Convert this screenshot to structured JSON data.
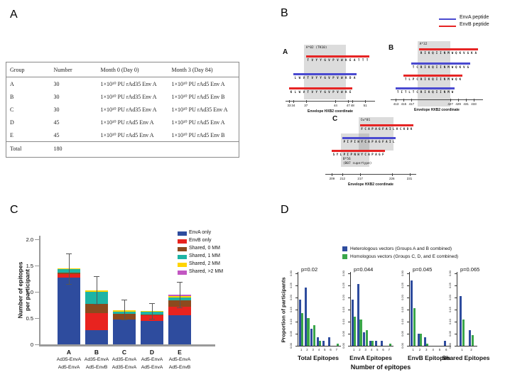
{
  "panels": {
    "A": "A",
    "B": "B",
    "C": "C",
    "D": "D"
  },
  "table": {
    "headers": [
      "Group",
      "Number",
      "Month 0 (Day 0)",
      "Month 3 (Day 84)"
    ],
    "rows": [
      [
        "A",
        "30",
        "1×10¹⁰ PU rAd35 Env A",
        "1×10¹⁰ PU rAd5 Env A"
      ],
      [
        "B",
        "30",
        "1×10¹⁰ PU rAd35 Env A",
        "1×10¹⁰ PU rAd5 Env B"
      ],
      [
        "C",
        "30",
        "1×10¹⁰ PU rAd35 Env A",
        "1×10¹⁰ PU rAd35 Env A"
      ],
      [
        "D",
        "45",
        "1×10¹⁰ PU rAd5 Env A",
        "1×10¹⁰ PU rAd5 Env A"
      ],
      [
        "E",
        "45",
        "1×10¹⁰ PU rAd5 Env A",
        "1×10¹⁰ PU rAd5 Env B"
      ]
    ],
    "total_row": [
      "Total",
      "180",
      "",
      ""
    ]
  },
  "peptide_maps": {
    "env_colors": {
      "EnvA": "#4a4ad0",
      "EnvB": "#e62424"
    },
    "legend": [
      {
        "label": "EnvA peptide",
        "env": "EnvA"
      },
      {
        "label": "EnvB peptide",
        "env": "EnvB"
      }
    ],
    "axis_caption": "Envelope HXB2 coordinate",
    "subpanels": [
      {
        "label": "A",
        "xmin": 32.5,
        "xmax": 53,
        "ticks": [
          33,
          34,
          37,
          44,
          47,
          48,
          51
        ],
        "boxes": [
          {
            "label": "A*02 (TK10)",
            "start": 36.5,
            "end": 46.5,
            "label_pos": "top"
          }
        ],
        "peptides": [
          {
            "env": "EnvB",
            "start": 37,
            "seq": "TVYYGVPVWKEATTT"
          },
          {
            "env": "EnvA",
            "start": 34,
            "seq": "LWVTVYYGVPVWKDA"
          },
          {
            "env": "EnvB",
            "start": 33,
            "seq": "KLWVTVYYGVPVWKE"
          }
        ]
      },
      {
        "label": "B",
        "xmin": 412,
        "xmax": 435,
        "ticks": [
          413,
          415,
          417,
          427,
          429,
          431,
          433
        ],
        "boxes": [
          {
            "label": "A*32",
            "start": 418.5,
            "end": 427,
            "label_pos": "top"
          }
        ],
        "peptides": [
          {
            "env": "EnvB",
            "start": 419,
            "seq": "RIKQIINMWQKVGKA"
          },
          {
            "env": "EnvA",
            "start": 417,
            "seq": "TCRIKQIINMWQKVG"
          },
          {
            "env": "EnvB",
            "start": 415,
            "seq": "TLPCRIKQIINMWQK"
          },
          {
            "env": "EnvA",
            "start": 413,
            "seq": "TITLTCRIKQIINMW"
          }
        ]
      },
      {
        "label": "C",
        "xmin": 207.5,
        "xmax": 232.5,
        "ticks": [
          209,
          212,
          217,
          226,
          231
        ],
        "boxes": [
          {
            "label": "Cw*01",
            "start": 216.5,
            "end": 226.5,
            "label_pos": "top"
          },
          {
            "label": "B*56\n(B07 supertype)",
            "start": 211.5,
            "end": 219.5,
            "label_pos": "bottom"
          }
        ],
        "peptides": [
          {
            "env": "EnvB",
            "start": 217,
            "seq": "FCAPAGFAILKCKDK"
          },
          {
            "env": "EnvA",
            "start": 212,
            "seq": "PIPIHYCAPAGFAIL"
          },
          {
            "env": "EnvB",
            "start": 209,
            "seq": "SYLPIPNHYCAPAGF"
          }
        ]
      }
    ]
  },
  "chart_data": [
    {
      "panel": "C",
      "type": "bar",
      "stacked": true,
      "ylabel": "Number of epitopes per participant",
      "ylim": [
        0,
        2.0
      ],
      "yticks": [
        "0",
        "0.5",
        "1.0",
        "1.5",
        "2.0"
      ],
      "grid": false,
      "legend_position": "top-right",
      "categories": [
        "A",
        "B",
        "C",
        "D",
        "E"
      ],
      "category_sublabels": [
        [
          "Ad35-EnvA",
          "Ad5-EnvA"
        ],
        [
          "Ad35-EnvA",
          "Ad5-EnvB"
        ],
        [
          "Ad35-EnvA",
          "Ad35-EnvA"
        ],
        [
          "Ad5-EnvA",
          "Ad5-EnvA"
        ],
        [
          "Ad5-EnvA",
          "Ad5-EnvB"
        ]
      ],
      "series": [
        {
          "name": "EnvA only",
          "color": "#2e4c9e",
          "values": [
            1.27,
            0.27,
            0.47,
            0.44,
            0.56
          ]
        },
        {
          "name": "EnvB only",
          "color": "#e8231f",
          "values": [
            0.07,
            0.33,
            0.0,
            0.11,
            0.16
          ]
        },
        {
          "name": "Shared, 0 MM",
          "color": "#8c4a1e",
          "values": [
            0.03,
            0.17,
            0.11,
            0.02,
            0.12
          ]
        },
        {
          "name": "Shared, 1 MM",
          "color": "#1db4a5",
          "values": [
            0.06,
            0.23,
            0.04,
            0.05,
            0.05
          ]
        },
        {
          "name": "Shared, 2 MM",
          "color": "#ffd400",
          "values": [
            0.01,
            0.03,
            0.03,
            0.01,
            0.03
          ]
        },
        {
          "name": "Shared, >2 MM",
          "color": "#c257c2",
          "values": [
            0.0,
            0.0,
            0.0,
            0.0,
            0.03
          ]
        }
      ],
      "error_bars": [
        {
          "lo": 1.15,
          "hi": 1.73
        },
        {
          "lo": 0.77,
          "hi": 1.3
        },
        {
          "lo": 0.47,
          "hi": 0.85
        },
        {
          "lo": 0.48,
          "hi": 0.78
        },
        {
          "lo": 0.7,
          "hi": 1.19
        }
      ]
    },
    {
      "panel": "D",
      "type": "bar",
      "grouped": true,
      "ylabel": "Proportion of participants",
      "xlabel": "Number of epitopes",
      "ylim": [
        0,
        0.3
      ],
      "yticks": [
        "0.00",
        "0.05",
        "0.10",
        "0.15",
        "0.20",
        "0.25",
        "0.30"
      ],
      "legend": [
        {
          "name": "Heterologous vectors (Groups A and B combined)",
          "color": "#2e4c9e"
        },
        {
          "name": "Homologous vectors (Groups C, D, and E combined)",
          "color": "#3aa64a"
        }
      ],
      "subplots": [
        {
          "title": "Total Epitopes",
          "p_value": "p=0.02",
          "categories": [
            "1",
            "2",
            "3",
            "4",
            "5",
            "6",
            "7"
          ],
          "series": [
            {
              "name": "Heterologous",
              "values": [
                0.19,
                0.24,
                0.07,
                0.035,
                0.02,
                0.035,
                0
              ]
            },
            {
              "name": "Homologous",
              "values": [
                0.135,
                0.115,
                0.085,
                0.02,
                0,
                0,
                0.01
              ]
            }
          ]
        },
        {
          "title": "EnvA Epitopes",
          "p_value": "p=0.044",
          "categories": [
            "1",
            "2",
            "3",
            "4",
            "5",
            "6",
            "7"
          ],
          "series": [
            {
              "name": "Heterologous",
              "values": [
                0.19,
                0.255,
                0.055,
                0.02,
                0.02,
                0.02,
                0
              ]
            },
            {
              "name": "Homologous",
              "values": [
                0.12,
                0.11,
                0.065,
                0.02,
                0,
                0,
                0.008
              ]
            }
          ]
        },
        {
          "title": "EnvB Epitopes",
          "p_value": "p=0.045",
          "categories": [
            "1",
            "2",
            "3",
            "4",
            "5",
            "6"
          ],
          "series": [
            {
              "name": "Heterologous",
              "values": [
                0.27,
                0.05,
                0.035,
                0,
                0,
                0.02
              ]
            },
            {
              "name": "Homologous",
              "values": [
                0.155,
                0.05,
                0.01,
                0,
                0,
                0
              ]
            }
          ]
        },
        {
          "title": "Shared Epitopes",
          "p_value": "p=0.065",
          "categories": [
            "1",
            "2"
          ],
          "series": [
            {
              "name": "Heterologous",
              "values": [
                0.205,
                0.065
              ]
            },
            {
              "name": "Homologous",
              "values": [
                0.11,
                0.045
              ]
            }
          ]
        }
      ]
    }
  ]
}
